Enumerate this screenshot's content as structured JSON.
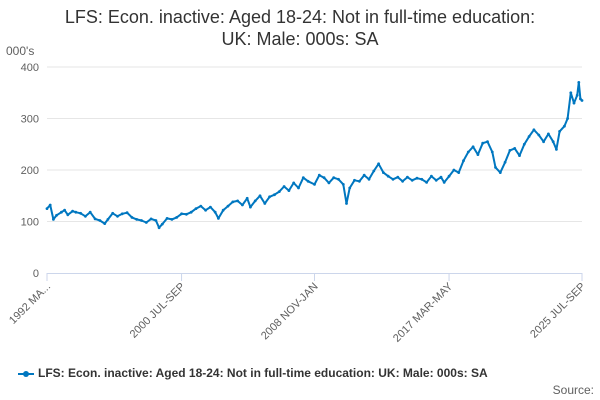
{
  "chart_data": {
    "type": "line",
    "title_line1": "LFS: Econ. inactive: Aged 18-24: Not in full-time education:",
    "title_line2": "UK: Male: 000s: SA",
    "unit_label": "000's",
    "ylim": [
      0,
      400
    ],
    "yticks": [
      "0",
      "100",
      "200",
      "300",
      "400"
    ],
    "xtick_labels": [
      "1992 MA...",
      "2000 JUL-SEP",
      "2008 NOV-JAN",
      "2017 MAR-MAY",
      "2025 JUL-SEP"
    ],
    "xtick_positions": [
      1992.2,
      2000.6,
      2008.9,
      2017.3,
      2025.6
    ],
    "xlim": [
      1992.2,
      2025.6
    ],
    "grid": true,
    "legend_position": "bottom",
    "series": [
      {
        "name": "LFS: Econ. inactive: Aged 18-24: Not in full-time education: UK: Male: 000s: SA",
        "color": "#0077c0",
        "points": [
          [
            1992.2,
            125
          ],
          [
            1992.4,
            132
          ],
          [
            1992.6,
            104
          ],
          [
            1992.8,
            112
          ],
          [
            1993.1,
            118
          ],
          [
            1993.3,
            122
          ],
          [
            1993.5,
            113
          ],
          [
            1993.8,
            120
          ],
          [
            1994.0,
            118
          ],
          [
            1994.3,
            116
          ],
          [
            1994.6,
            110
          ],
          [
            1994.9,
            118
          ],
          [
            1995.2,
            105
          ],
          [
            1995.5,
            102
          ],
          [
            1995.8,
            96
          ],
          [
            1996.0,
            104
          ],
          [
            1996.3,
            116
          ],
          [
            1996.6,
            110
          ],
          [
            1996.9,
            115
          ],
          [
            1997.2,
            117
          ],
          [
            1997.5,
            108
          ],
          [
            1997.8,
            104
          ],
          [
            1998.1,
            102
          ],
          [
            1998.4,
            98
          ],
          [
            1998.7,
            105
          ],
          [
            1999.0,
            102
          ],
          [
            1999.2,
            88
          ],
          [
            1999.4,
            95
          ],
          [
            1999.7,
            106
          ],
          [
            2000.0,
            104
          ],
          [
            2000.3,
            108
          ],
          [
            2000.6,
            115
          ],
          [
            2000.9,
            114
          ],
          [
            2001.2,
            118
          ],
          [
            2001.5,
            125
          ],
          [
            2001.8,
            130
          ],
          [
            2002.1,
            122
          ],
          [
            2002.4,
            128
          ],
          [
            2002.7,
            118
          ],
          [
            2002.9,
            106
          ],
          [
            2003.2,
            122
          ],
          [
            2003.5,
            130
          ],
          [
            2003.8,
            138
          ],
          [
            2004.1,
            140
          ],
          [
            2004.4,
            132
          ],
          [
            2004.7,
            145
          ],
          [
            2004.9,
            128
          ],
          [
            2005.2,
            140
          ],
          [
            2005.5,
            150
          ],
          [
            2005.8,
            135
          ],
          [
            2006.1,
            148
          ],
          [
            2006.4,
            152
          ],
          [
            2006.7,
            158
          ],
          [
            2007.0,
            168
          ],
          [
            2007.3,
            160
          ],
          [
            2007.6,
            175
          ],
          [
            2007.9,
            165
          ],
          [
            2008.2,
            185
          ],
          [
            2008.5,
            178
          ],
          [
            2008.9,
            172
          ],
          [
            2009.2,
            190
          ],
          [
            2009.5,
            185
          ],
          [
            2009.8,
            175
          ],
          [
            2010.1,
            185
          ],
          [
            2010.4,
            182
          ],
          [
            2010.7,
            172
          ],
          [
            2010.9,
            135
          ],
          [
            2011.1,
            165
          ],
          [
            2011.4,
            180
          ],
          [
            2011.7,
            178
          ],
          [
            2012.0,
            190
          ],
          [
            2012.3,
            182
          ],
          [
            2012.6,
            198
          ],
          [
            2012.9,
            212
          ],
          [
            2013.2,
            195
          ],
          [
            2013.5,
            188
          ],
          [
            2013.8,
            182
          ],
          [
            2014.1,
            186
          ],
          [
            2014.4,
            178
          ],
          [
            2014.7,
            186
          ],
          [
            2015.0,
            180
          ],
          [
            2015.3,
            184
          ],
          [
            2015.6,
            182
          ],
          [
            2015.9,
            176
          ],
          [
            2016.2,
            188
          ],
          [
            2016.5,
            180
          ],
          [
            2016.8,
            186
          ],
          [
            2017.0,
            176
          ],
          [
            2017.3,
            188
          ],
          [
            2017.6,
            200
          ],
          [
            2017.9,
            195
          ],
          [
            2018.2,
            218
          ],
          [
            2018.5,
            235
          ],
          [
            2018.8,
            245
          ],
          [
            2019.1,
            230
          ],
          [
            2019.4,
            252
          ],
          [
            2019.7,
            255
          ],
          [
            2020.0,
            235
          ],
          [
            2020.2,
            205
          ],
          [
            2020.5,
            195
          ],
          [
            2020.8,
            215
          ],
          [
            2021.1,
            238
          ],
          [
            2021.4,
            242
          ],
          [
            2021.7,
            228
          ],
          [
            2022.0,
            250
          ],
          [
            2022.3,
            265
          ],
          [
            2022.6,
            278
          ],
          [
            2022.9,
            268
          ],
          [
            2023.2,
            255
          ],
          [
            2023.5,
            270
          ],
          [
            2023.8,
            255
          ],
          [
            2024.0,
            240
          ],
          [
            2024.2,
            275
          ],
          [
            2024.5,
            285
          ],
          [
            2024.7,
            300
          ],
          [
            2024.9,
            350
          ],
          [
            2025.1,
            330
          ],
          [
            2025.3,
            345
          ],
          [
            2025.4,
            370
          ],
          [
            2025.5,
            338
          ],
          [
            2025.6,
            335
          ]
        ]
      }
    ]
  },
  "footer": {
    "source_label": "Source:"
  }
}
